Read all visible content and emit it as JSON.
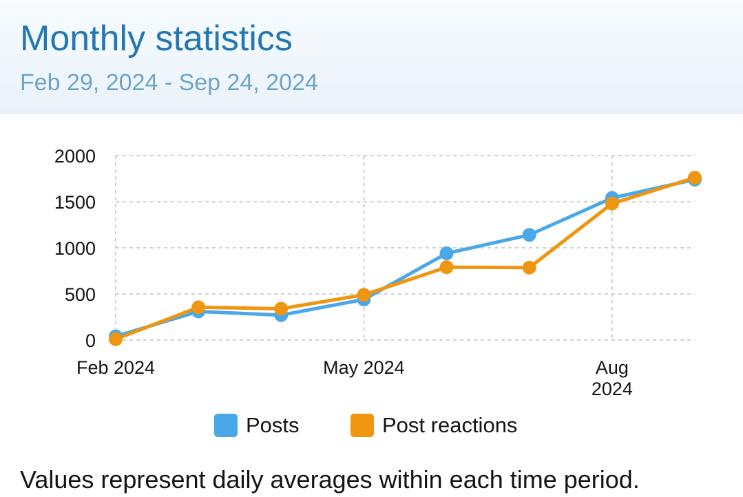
{
  "header": {
    "title": "Monthly statistics",
    "date_range": "Feb 29, 2024 - Sep 24, 2024"
  },
  "colors": {
    "posts": "#4aa8e8",
    "post_reactions": "#f0950f",
    "grid": "#d0d0d0"
  },
  "chart_data": {
    "type": "line",
    "title": "",
    "xlabel": "",
    "ylabel": "",
    "x": [
      0,
      1,
      2,
      3,
      4,
      5,
      6,
      7
    ],
    "x_ticks": [
      {
        "pos": 0,
        "lines": [
          "Feb 2024"
        ]
      },
      {
        "pos": 3,
        "lines": [
          "May 2024"
        ]
      },
      {
        "pos": 6,
        "lines": [
          "Aug",
          "2024"
        ]
      }
    ],
    "y_ticks": [
      0,
      500,
      1000,
      1500,
      2000
    ],
    "xlim": [
      0,
      7
    ],
    "ylim": [
      0,
      2000
    ],
    "grid": true,
    "legend": "bottom-center",
    "series": [
      {
        "name": "Posts",
        "values": [
          40,
          310,
          270,
          440,
          940,
          1140,
          1540,
          1740
        ]
      },
      {
        "name": "Post reactions",
        "values": [
          10,
          355,
          340,
          490,
          790,
          785,
          1480,
          1760
        ]
      }
    ]
  },
  "legend": {
    "items": [
      "Posts",
      "Post reactions"
    ]
  },
  "footer": {
    "note": "Values represent daily averages within each time period."
  }
}
